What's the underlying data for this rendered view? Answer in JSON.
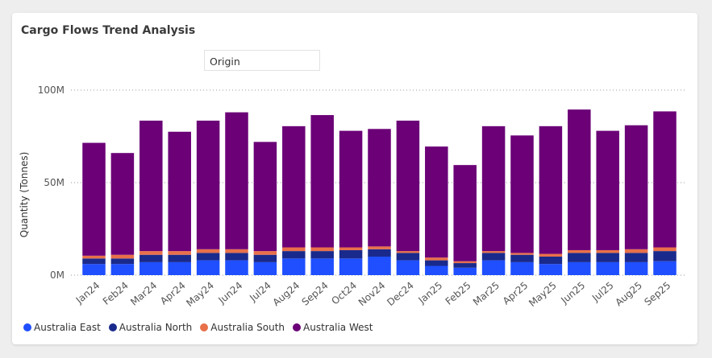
{
  "title": "Cargo Flows Trend Analysis",
  "slicer": {
    "label": "Origin"
  },
  "chart_data": {
    "type": "bar",
    "stacked": true,
    "categories": [
      "Jan24",
      "Feb24",
      "Mar24",
      "Apr24",
      "May24",
      "Jun24",
      "Jul24",
      "Aug24",
      "Sep24",
      "Oct24",
      "Nov24",
      "Dec24",
      "Jan25",
      "Feb25",
      "Mar25",
      "Apr25",
      "May25",
      "Jun25",
      "Jul25",
      "Aug25",
      "Sep25"
    ],
    "series": [
      {
        "name": "Australia East",
        "color": "#1f4fff",
        "values": [
          6,
          6,
          7,
          7,
          8,
          8,
          7,
          9,
          9,
          9,
          10,
          8,
          5,
          4,
          8,
          7,
          6,
          7,
          7,
          7,
          7.5
        ]
      },
      {
        "name": "Australia North",
        "color": "#1a2a8c",
        "values": [
          3,
          3,
          4,
          4,
          4,
          4,
          4,
          4,
          4,
          4.5,
          4,
          4,
          3,
          2.5,
          4,
          4,
          4,
          5,
          5,
          5,
          5.5
        ]
      },
      {
        "name": "Australia South",
        "color": "#e8704a",
        "values": [
          1.5,
          2,
          2,
          2,
          2,
          2,
          2,
          2,
          2,
          1.5,
          1.5,
          1,
          1.5,
          1,
          1,
          1,
          1.5,
          1.5,
          1.5,
          2,
          2
        ]
      },
      {
        "name": "Australia West",
        "color": "#6b0077",
        "values": [
          61,
          55,
          70.5,
          64.5,
          69.5,
          74,
          59,
          65.5,
          71.5,
          63,
          63.5,
          70.5,
          60,
          52,
          67.5,
          63.5,
          69,
          76,
          64.5,
          67,
          73.5
        ]
      }
    ],
    "ylabel": "Quantity (Tonnes)",
    "yticks": [
      "0M",
      "50M",
      "100M"
    ],
    "ylim": [
      0,
      100
    ],
    "grid": "horizontal-dotted",
    "legend_position": "bottom-left"
  }
}
